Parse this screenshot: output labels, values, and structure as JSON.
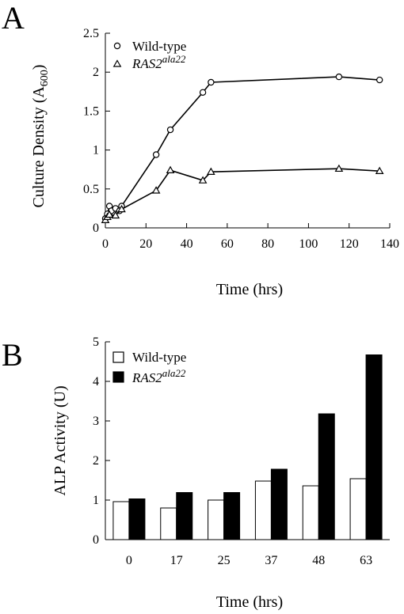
{
  "panels": {
    "a_label": "A",
    "b_label": "B"
  },
  "chart_data": [
    {
      "type": "line",
      "panel": "A",
      "xlabel": "Time (hrs)",
      "ylabel": "Culture Density (A",
      "ylabel_sub": "600",
      "ylabel_close": ")",
      "xlim": [
        0,
        140
      ],
      "ylim": [
        0,
        2.5
      ],
      "xticks": [
        "0",
        "20",
        "40",
        "60",
        "80",
        "100",
        "120",
        "140"
      ],
      "yticks": [
        "0",
        "0.5",
        "1",
        "1.5",
        "2",
        "2.5"
      ],
      "grid": false,
      "legend_position": "top-left",
      "series": [
        {
          "name": "Wild-type",
          "marker": "circle",
          "x": [
            0,
            1,
            2,
            3,
            5,
            7,
            8,
            25,
            32,
            48,
            52,
            115,
            135
          ],
          "y": [
            0.12,
            0.18,
            0.28,
            0.22,
            0.25,
            0.22,
            0.28,
            0.94,
            1.26,
            1.74,
            1.87,
            1.94,
            1.9
          ]
        },
        {
          "name": "RAS2",
          "name_sup": "ala22",
          "marker": "triangle",
          "x": [
            0,
            1,
            2,
            5,
            8,
            25,
            32,
            48,
            52,
            115,
            135
          ],
          "y": [
            0.1,
            0.14,
            0.17,
            0.16,
            0.24,
            0.48,
            0.74,
            0.61,
            0.72,
            0.76,
            0.73
          ]
        }
      ]
    },
    {
      "type": "bar",
      "panel": "B",
      "xlabel": "Time (hrs)",
      "ylabel": "ALP Activity (U)",
      "ylim": [
        0,
        5
      ],
      "yticks": [
        "0",
        "1",
        "2",
        "3",
        "4",
        "5"
      ],
      "categories": [
        "0",
        "17",
        "25",
        "37",
        "48",
        "63"
      ],
      "grid": false,
      "legend_position": "top-left",
      "series": [
        {
          "name": "Wild-type",
          "fill": "#ffffff",
          "values": [
            0.96,
            0.8,
            1.0,
            1.48,
            1.36,
            1.54
          ]
        },
        {
          "name": "RAS2",
          "name_sup": "ala22",
          "fill": "#000000",
          "values": [
            1.03,
            1.19,
            1.19,
            1.78,
            3.18,
            4.67
          ]
        }
      ]
    }
  ]
}
